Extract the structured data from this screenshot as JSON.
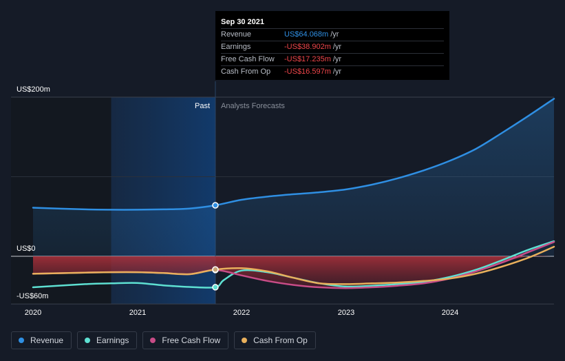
{
  "chart_data": {
    "type": "line",
    "x_ticks": [
      "2020",
      "2021",
      "2022",
      "2023",
      "2024"
    ],
    "y_labels": [
      "US$200m",
      "US$0",
      "-US$60m"
    ],
    "ylim": [
      -60,
      200
    ],
    "xlim": [
      2020.0,
      2025.0
    ],
    "past_label": "Past",
    "forecast_label": "Analysts Forecasts",
    "divider_x": 2021.75,
    "series": [
      {
        "name": "Revenue",
        "color": "#2f8fe3",
        "fill": "#2f8fe3",
        "points": [
          [
            2020.0,
            61
          ],
          [
            2020.5,
            59
          ],
          [
            2020.75,
            58.5
          ],
          [
            2021.0,
            58.5
          ],
          [
            2021.25,
            59
          ],
          [
            2021.5,
            60
          ],
          [
            2021.75,
            64.068
          ],
          [
            2022.0,
            71
          ],
          [
            2022.25,
            75
          ],
          [
            2022.5,
            78
          ],
          [
            2022.75,
            80.5
          ],
          [
            2023.0,
            84
          ],
          [
            2023.25,
            90
          ],
          [
            2023.5,
            98
          ],
          [
            2023.75,
            108
          ],
          [
            2024.0,
            120
          ],
          [
            2024.25,
            135
          ],
          [
            2024.5,
            155
          ],
          [
            2024.75,
            176
          ],
          [
            2025.0,
            198
          ]
        ]
      },
      {
        "name": "Earnings",
        "color": "#5ee0d2",
        "fill": "",
        "points": [
          [
            2020.0,
            -39
          ],
          [
            2020.5,
            -35
          ],
          [
            2020.75,
            -34
          ],
          [
            2021.0,
            -33.5
          ],
          [
            2021.25,
            -36.5
          ],
          [
            2021.5,
            -38.5
          ],
          [
            2021.75,
            -38.902
          ],
          [
            2021.83,
            -30
          ],
          [
            2022.0,
            -18
          ],
          [
            2022.25,
            -20
          ],
          [
            2022.5,
            -27
          ],
          [
            2022.75,
            -34
          ],
          [
            2023.0,
            -38
          ],
          [
            2023.25,
            -37
          ],
          [
            2023.5,
            -35
          ],
          [
            2023.75,
            -32
          ],
          [
            2024.0,
            -26
          ],
          [
            2024.25,
            -17
          ],
          [
            2024.5,
            -5
          ],
          [
            2024.75,
            8
          ],
          [
            2025.0,
            19
          ]
        ]
      },
      {
        "name": "Free Cash Flow",
        "color": "#c84c87",
        "fill": "",
        "points": [
          [
            2020.0,
            -22
          ],
          [
            2020.5,
            -20.5
          ],
          [
            2020.75,
            -20
          ],
          [
            2021.0,
            -20
          ],
          [
            2021.25,
            -21
          ],
          [
            2021.5,
            -22.5
          ],
          [
            2021.75,
            -17.235
          ],
          [
            2022.0,
            -24
          ],
          [
            2022.25,
            -31
          ],
          [
            2022.5,
            -36
          ],
          [
            2022.75,
            -39
          ],
          [
            2023.0,
            -40
          ],
          [
            2023.25,
            -39
          ],
          [
            2023.5,
            -37
          ],
          [
            2023.75,
            -34
          ],
          [
            2024.0,
            -28
          ],
          [
            2024.25,
            -19
          ],
          [
            2024.5,
            -8
          ],
          [
            2024.75,
            5
          ],
          [
            2025.0,
            18
          ]
        ]
      },
      {
        "name": "Cash From Op",
        "color": "#e9b05c",
        "fill": "",
        "points": [
          [
            2020.0,
            -22
          ],
          [
            2020.5,
            -20.5
          ],
          [
            2020.75,
            -20
          ],
          [
            2021.0,
            -20
          ],
          [
            2021.25,
            -21
          ],
          [
            2021.5,
            -22.5
          ],
          [
            2021.75,
            -16.597
          ],
          [
            2022.0,
            -15
          ],
          [
            2022.25,
            -19
          ],
          [
            2022.5,
            -27
          ],
          [
            2022.75,
            -34
          ],
          [
            2023.0,
            -35
          ],
          [
            2023.25,
            -34
          ],
          [
            2023.5,
            -33
          ],
          [
            2023.75,
            -31
          ],
          [
            2024.0,
            -28
          ],
          [
            2024.25,
            -22
          ],
          [
            2024.5,
            -13
          ],
          [
            2024.75,
            -2
          ],
          [
            2025.0,
            12
          ]
        ]
      }
    ]
  },
  "tooltip": {
    "date": "Sep 30 2021",
    "rows": [
      {
        "label": "Revenue",
        "value": "US$64.068m",
        "unit": "/yr",
        "color": "#2f8fe3"
      },
      {
        "label": "Earnings",
        "value": "-US$38.902m",
        "unit": "/yr",
        "color": "#f0464b"
      },
      {
        "label": "Free Cash Flow",
        "value": "-US$17.235m",
        "unit": "/yr",
        "color": "#f0464b"
      },
      {
        "label": "Cash From Op",
        "value": "-US$16.597m",
        "unit": "/yr",
        "color": "#f0464b"
      }
    ]
  },
  "legend": [
    {
      "label": "Revenue",
      "color": "#2f8fe3"
    },
    {
      "label": "Earnings",
      "color": "#5ee0d2"
    },
    {
      "label": "Free Cash Flow",
      "color": "#c84c87"
    },
    {
      "label": "Cash From Op",
      "color": "#e9b05c"
    }
  ]
}
